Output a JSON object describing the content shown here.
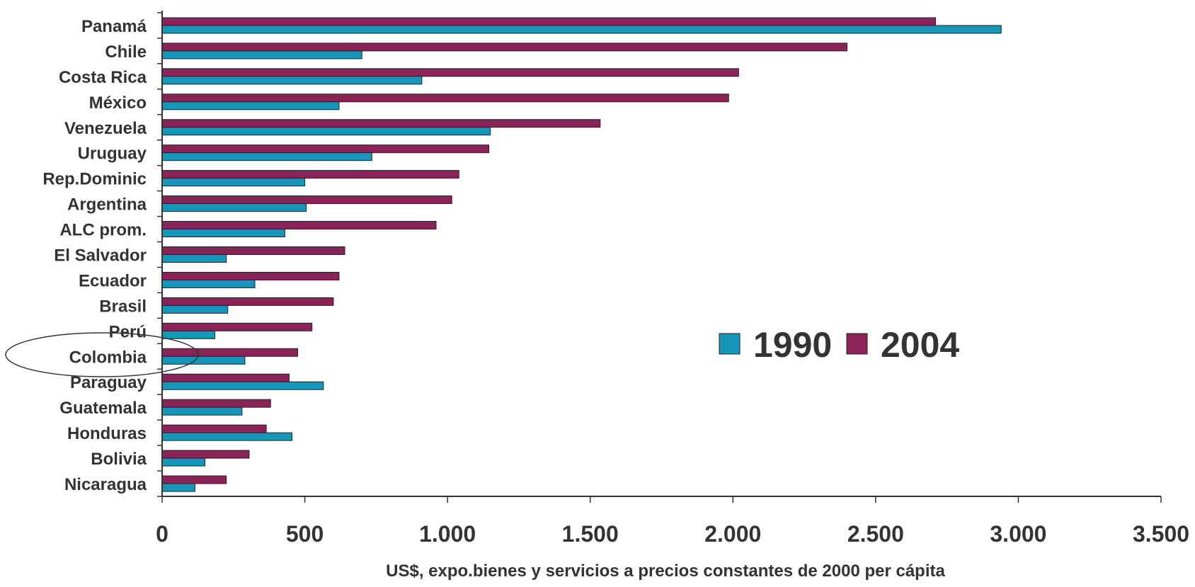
{
  "chart_data": {
    "type": "bar",
    "orientation": "horizontal",
    "categories": [
      "Panamá",
      "Chile",
      "Costa Rica",
      "México",
      "Venezuela",
      "Uruguay",
      "Rep.Dominic",
      "Argentina",
      "ALC prom.",
      "El Salvador",
      "Ecuador",
      "Brasil",
      "Perú",
      "Colombia",
      "Paraguay",
      "Guatemala",
      "Honduras",
      "Bolivia",
      "Nicaragua"
    ],
    "series": [
      {
        "name": "1990",
        "color": "#1497b8",
        "values": [
          2940,
          700,
          910,
          620,
          1150,
          735,
          500,
          505,
          430,
          225,
          325,
          230,
          185,
          290,
          565,
          280,
          455,
          150,
          115
        ]
      },
      {
        "name": "2004",
        "color": "#8b2358",
        "values": [
          2710,
          2400,
          2020,
          1985,
          1535,
          1145,
          1040,
          1015,
          960,
          640,
          620,
          600,
          525,
          475,
          445,
          380,
          365,
          305,
          225
        ]
      }
    ],
    "xlim": [
      0,
      3500
    ],
    "xticks": [
      "0",
      "500",
      "1.000",
      "1.500",
      "2.000",
      "2.500",
      "3.000",
      "3.500"
    ],
    "xlabel": "US$, expo.bienes y servicios a precios constantes de 2000 per cápita",
    "legend_position": "center-right",
    "highlighted_category": "Colombia"
  }
}
